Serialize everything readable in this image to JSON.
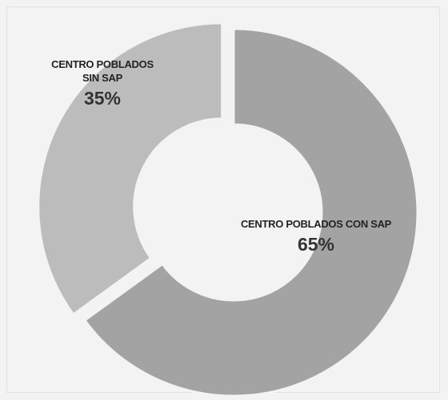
{
  "chart_data": {
    "type": "pie",
    "donut": true,
    "categories": [
      "CENTRO POBLADOS CON SAP",
      "CENTRO POBLADOS SIN SAP"
    ],
    "values": [
      65,
      35
    ],
    "value_labels": [
      "65%",
      "35%"
    ],
    "colors": [
      "#a3a3a3",
      "#bcbcbc"
    ]
  }
}
